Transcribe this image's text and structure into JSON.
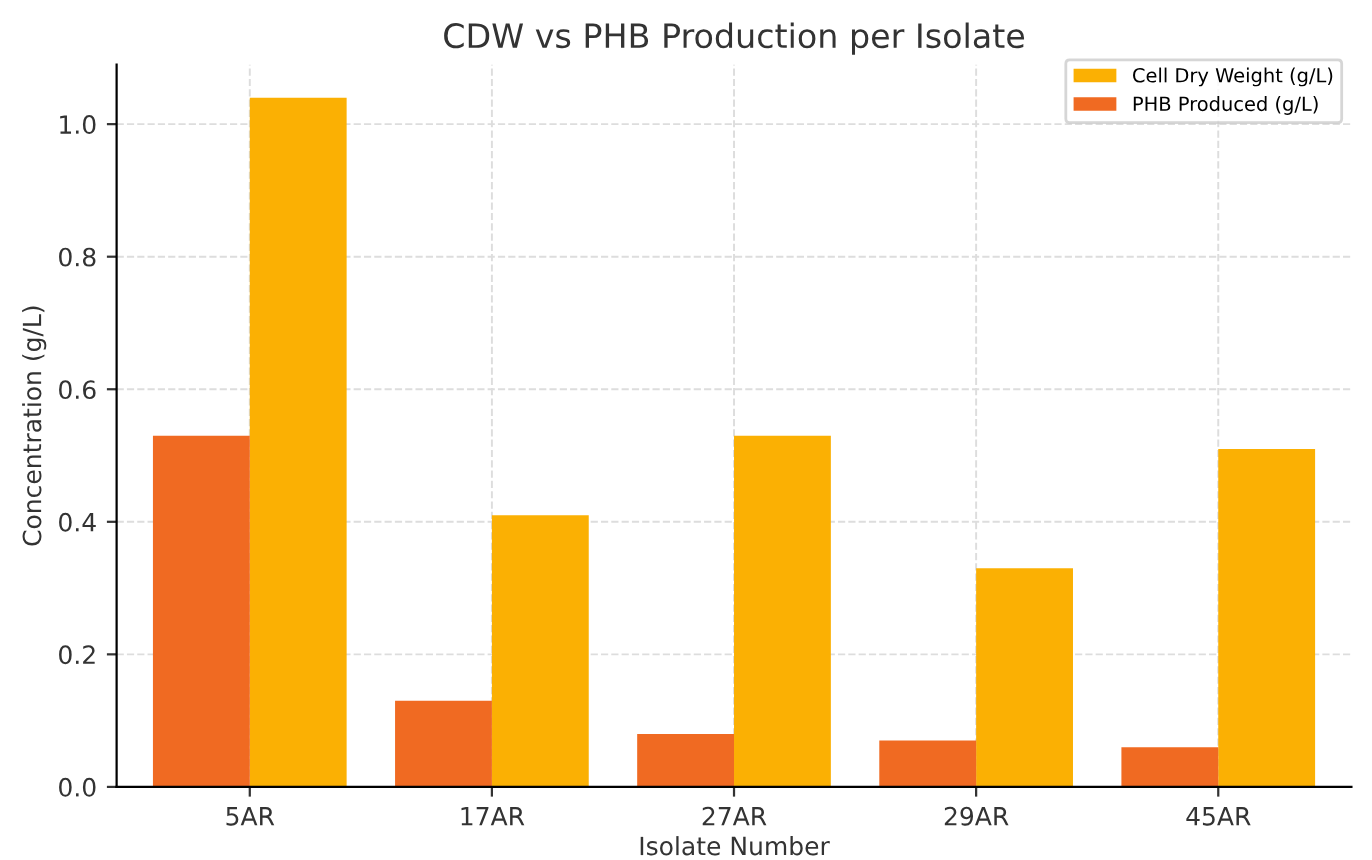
{
  "chart_data": {
    "type": "bar",
    "title": "CDW vs PHB Production per Isolate",
    "xlabel": "Isolate Number",
    "ylabel": "Concentration (g/L)",
    "categories": [
      "5AR",
      "17AR",
      "27AR",
      "29AR",
      "45AR"
    ],
    "series": [
      {
        "name": "Cell Dry Weight (g/L)",
        "color": "#fbb003",
        "values": [
          1.04,
          0.41,
          0.53,
          0.33,
          0.51
        ]
      },
      {
        "name": "PHB Produced (g/L)",
        "color": "#f06a22",
        "values": [
          0.53,
          0.13,
          0.08,
          0.07,
          0.06
        ]
      }
    ],
    "ylim": [
      0,
      1.09
    ],
    "yticks": [
      {
        "value": 0,
        "label": "0.0"
      },
      {
        "value": 0.2,
        "label": "0.2"
      },
      {
        "value": 0.4,
        "label": "0.4"
      },
      {
        "value": 0.6,
        "label": "0.6"
      },
      {
        "value": 0.8,
        "label": "0.8"
      },
      {
        "value": 1.0,
        "label": "1.0"
      }
    ],
    "grid": true,
    "legend": "top right"
  }
}
